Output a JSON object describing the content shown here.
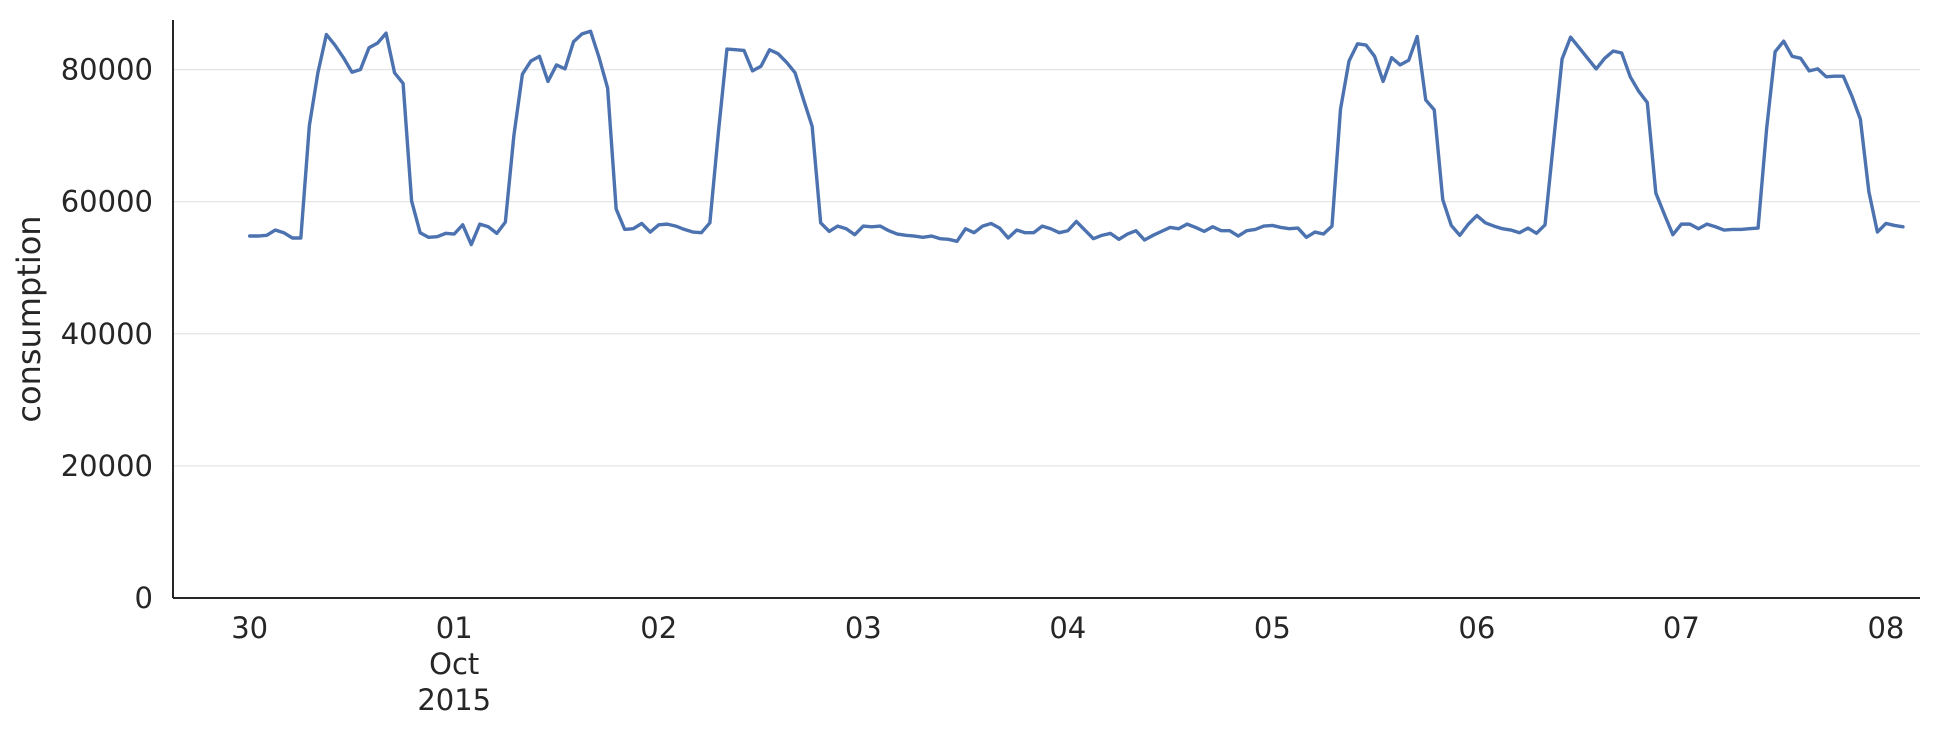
{
  "chart_data": {
    "type": "line",
    "title": "",
    "xlabel": "",
    "ylabel": "consumption",
    "x_range": [
      "2015-09-29T15:00",
      "2015-10-08T04:00"
    ],
    "ylim": [
      0,
      87500
    ],
    "yticks": [
      0,
      20000,
      40000,
      60000,
      80000
    ],
    "ytick_labels": [
      "0",
      "20000",
      "40000",
      "60000",
      "80000"
    ],
    "xticks": [
      {
        "date": "2015-09-30",
        "lines": [
          "30"
        ]
      },
      {
        "date": "2015-10-01",
        "lines": [
          "01",
          "Oct",
          "2015"
        ]
      },
      {
        "date": "2015-10-02",
        "lines": [
          "02"
        ]
      },
      {
        "date": "2015-10-03",
        "lines": [
          "03"
        ]
      },
      {
        "date": "2015-10-04",
        "lines": [
          "04"
        ]
      },
      {
        "date": "2015-10-05",
        "lines": [
          "05"
        ]
      },
      {
        "date": "2015-10-06",
        "lines": [
          "06"
        ]
      },
      {
        "date": "2015-10-07",
        "lines": [
          "07"
        ]
      },
      {
        "date": "2015-10-08",
        "lines": [
          "08"
        ]
      }
    ],
    "grid": {
      "y": true,
      "x": false
    },
    "interval_hours": 1,
    "series": [
      {
        "color": "#4c72b0",
        "start": "2015-09-30T00:00",
        "values": [
          54800,
          54800,
          54900,
          55700,
          55300,
          54500,
          54500,
          71500,
          79500,
          85300,
          83700,
          81800,
          79600,
          80000,
          83300,
          84000,
          85500,
          79500,
          77900,
          60100,
          55300,
          54600,
          54700,
          55200,
          55100,
          56500,
          53500,
          56600,
          56200,
          55200,
          56900,
          70000,
          79300,
          81300,
          82000,
          78200,
          80700,
          80100,
          84200,
          85400,
          85800,
          81800,
          77200,
          58900,
          55800,
          55900,
          56700,
          55400,
          56500,
          56600,
          56300,
          55800,
          55400,
          55300,
          56800,
          70500,
          83100,
          83000,
          82900,
          79800,
          80500,
          83000,
          82400,
          81100,
          79500,
          75400,
          71400,
          56800,
          55500,
          56300,
          55900,
          55000,
          56300,
          56200,
          56300,
          55600,
          55100,
          54900,
          54800,
          54600,
          54800,
          54400,
          54300,
          54000,
          55900,
          55300,
          56300,
          56700,
          56000,
          54500,
          55700,
          55300,
          55300,
          56300,
          55900,
          55300,
          55600,
          57000,
          55700,
          54400,
          54900,
          55200,
          54300,
          55100,
          55600,
          54200,
          54900,
          55500,
          56100,
          55900,
          56600,
          56100,
          55500,
          56200,
          55600,
          55600,
          54800,
          55600,
          55800,
          56300,
          56400,
          56100,
          55900,
          56000,
          54600,
          55400,
          55100,
          56300,
          74000,
          81300,
          83900,
          83700,
          82000,
          78200,
          81800,
          80700,
          81400,
          85000,
          75400,
          73900,
          60300,
          56400,
          54900,
          56600,
          57900,
          56800,
          56300,
          55900,
          55700,
          55300,
          56000,
          55200,
          56500,
          69100,
          81600,
          84900,
          83300,
          81700,
          80100,
          81700,
          82800,
          82500,
          78900,
          76700,
          75000,
          61300,
          58100,
          55000,
          56600,
          56600,
          55900,
          56600,
          56200,
          55700,
          55800,
          55800,
          55900,
          56000,
          71000,
          82700,
          84300,
          82000,
          81700,
          79800,
          80100,
          78900,
          79000,
          79000,
          76000,
          72500,
          61500,
          55400,
          56700,
          56400,
          56200
        ]
      }
    ]
  }
}
